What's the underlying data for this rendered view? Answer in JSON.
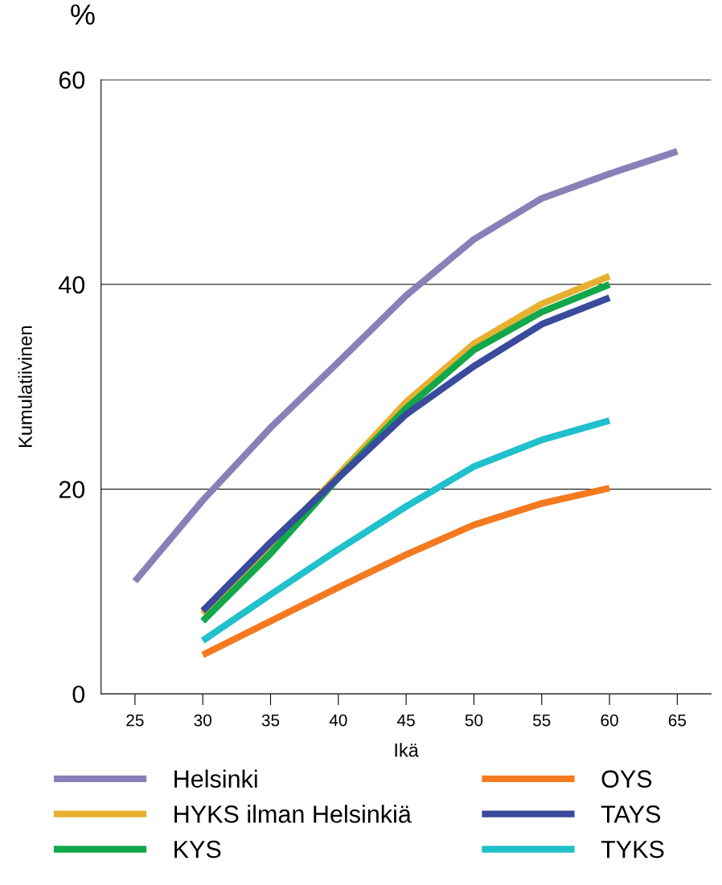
{
  "chart_data": {
    "type": "line",
    "xlabel": "Ikä",
    "ylabel": "Kumulatiivinen",
    "annotations": [
      "%"
    ],
    "x": [
      25,
      30,
      35,
      40,
      45,
      50,
      55,
      60,
      65
    ],
    "series": [
      {
        "name": "Helsinki",
        "color": "#8b7fb8",
        "values": [
          11.0,
          18.9,
          26.0,
          32.4,
          38.9,
          44.4,
          48.4,
          50.8,
          53.0
        ]
      },
      {
        "name": "HYKS ilman Helsinkiä",
        "color": "#e8b030",
        "values": [
          null,
          7.8,
          14.4,
          21.4,
          28.5,
          34.2,
          38.1,
          40.8,
          null
        ]
      },
      {
        "name": "KYS",
        "color": "#10a84a",
        "values": [
          null,
          7.1,
          13.7,
          21.1,
          27.9,
          33.6,
          37.3,
          40.0,
          null
        ]
      },
      {
        "name": "OYS",
        "color": "#f47a20",
        "values": [
          null,
          3.8,
          7.1,
          10.4,
          13.6,
          16.5,
          18.6,
          20.1,
          null
        ]
      },
      {
        "name": "TAYS",
        "color": "#3a4a9c",
        "values": [
          null,
          8.1,
          14.8,
          21.1,
          27.3,
          32.0,
          36.1,
          38.7,
          null
        ]
      },
      {
        "name": "TYKS",
        "color": "#20c0cc",
        "values": [
          null,
          5.2,
          9.7,
          14.1,
          18.3,
          22.2,
          24.8,
          26.7,
          null
        ]
      }
    ],
    "xlim": [
      22.5,
      67.5
    ],
    "xticks": [
      25,
      30,
      35,
      40,
      45,
      50,
      55,
      60,
      65
    ],
    "ylim": [
      0,
      60
    ],
    "yticks": [
      0,
      20,
      40,
      60
    ],
    "grid": "y",
    "legend": "bottom",
    "marker": "none",
    "line_style": "solid"
  }
}
